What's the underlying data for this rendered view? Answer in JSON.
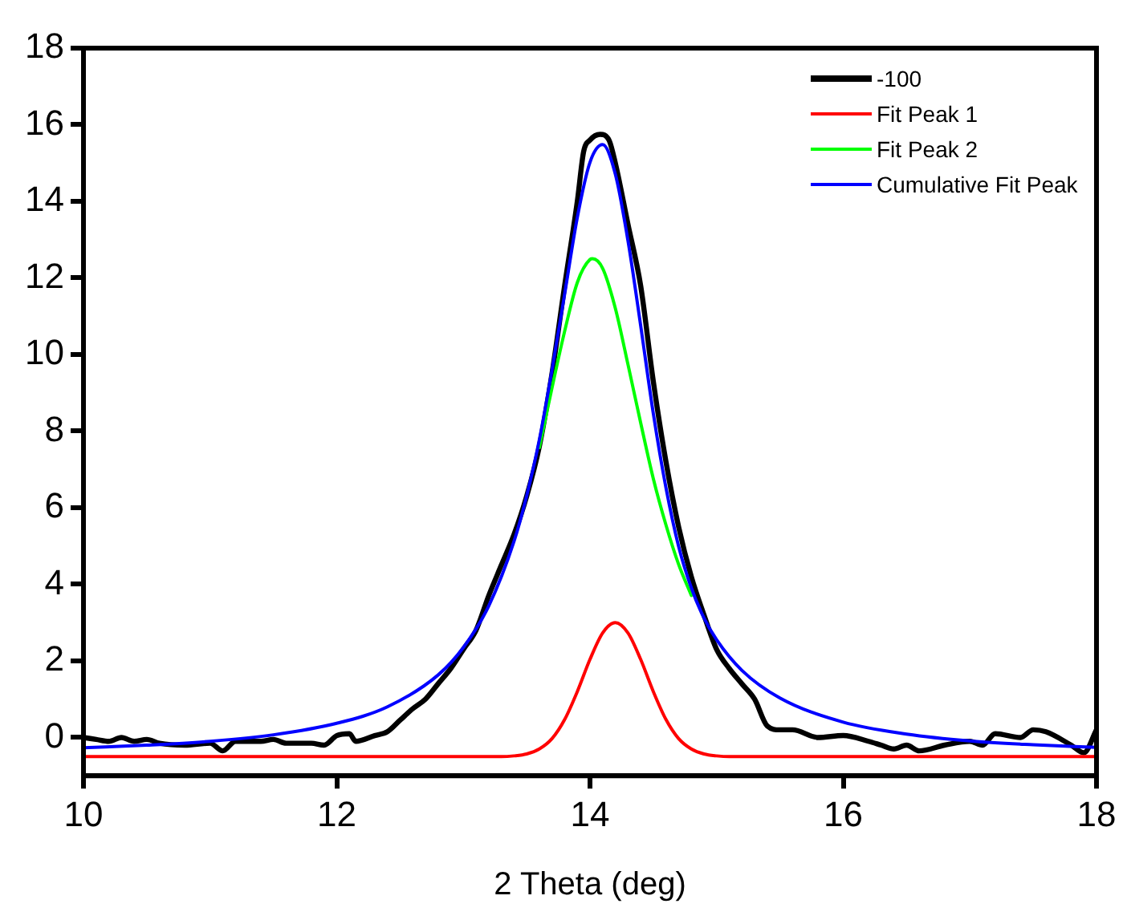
{
  "chart_data": {
    "type": "line",
    "xlabel": "2 Theta (deg)",
    "xlim": [
      10,
      18
    ],
    "xticks": [
      10,
      12,
      14,
      16,
      18
    ],
    "ylim": [
      -1,
      18
    ],
    "yticks": [
      0,
      2,
      4,
      6,
      8,
      10,
      12,
      14,
      16,
      18
    ],
    "grid": false,
    "legend": "top right",
    "marker": "none",
    "line_style": "solid",
    "series": [
      {
        "name": "-100",
        "color": "#000000",
        "x": [
          10,
          10.1,
          10.2,
          10.3,
          10.4,
          10.5,
          10.6,
          10.8,
          11.0,
          11.1,
          11.2,
          11.4,
          11.5,
          11.6,
          11.8,
          11.9,
          12.0,
          12.1,
          12.15,
          12.3,
          12.4,
          12.5,
          12.6,
          12.7,
          12.8,
          12.9,
          13.0,
          13.1,
          13.2,
          13.3,
          13.4,
          13.5,
          13.6,
          13.7,
          13.8,
          13.9,
          13.95,
          14.0,
          14.08,
          14.15,
          14.2,
          14.3,
          14.4,
          14.5,
          14.6,
          14.7,
          14.8,
          14.9,
          15.0,
          15.1,
          15.2,
          15.3,
          15.4,
          15.5,
          15.6,
          15.8,
          16.0,
          16.2,
          16.3,
          16.4,
          16.5,
          16.6,
          16.8,
          17.0,
          17.1,
          17.2,
          17.4,
          17.5,
          17.6,
          17.8,
          17.9,
          18.0
        ],
        "values": [
          0.0,
          -0.05,
          -0.1,
          0.0,
          -0.1,
          -0.05,
          -0.15,
          -0.2,
          -0.15,
          -0.35,
          -0.1,
          -0.1,
          -0.05,
          -0.15,
          -0.15,
          -0.2,
          0.05,
          0.1,
          -0.1,
          0.05,
          0.15,
          0.45,
          0.75,
          1.0,
          1.4,
          1.8,
          2.3,
          2.8,
          3.7,
          4.5,
          5.3,
          6.3,
          7.6,
          9.5,
          11.8,
          14.0,
          15.3,
          15.6,
          15.75,
          15.6,
          15.0,
          13.4,
          11.8,
          9.3,
          7.2,
          5.5,
          4.2,
          3.2,
          2.3,
          1.8,
          1.4,
          1.0,
          0.3,
          0.2,
          0.2,
          0.0,
          0.05,
          -0.1,
          -0.2,
          -0.3,
          -0.2,
          -0.35,
          -0.2,
          -0.1,
          -0.2,
          0.1,
          0.0,
          0.2,
          0.15,
          -0.2,
          -0.4,
          0.2
        ]
      },
      {
        "name": "Fit Peak 1",
        "color": "#ff0000",
        "x": [
          10,
          13.3,
          13.4,
          13.5,
          13.6,
          13.7,
          13.8,
          13.9,
          14.0,
          14.1,
          14.2,
          14.3,
          14.4,
          14.5,
          14.6,
          14.7,
          14.8,
          14.9,
          15.0,
          15.1,
          18
        ],
        "values": [
          -0.5,
          -0.5,
          -0.48,
          -0.43,
          -0.3,
          -0.03,
          0.47,
          1.2,
          2.04,
          2.73,
          3.0,
          2.73,
          2.04,
          1.2,
          0.47,
          -0.03,
          -0.3,
          -0.43,
          -0.48,
          -0.5,
          -0.5
        ]
      },
      {
        "name": "Fit Peak 2",
        "color": "#00ff00",
        "x": [
          13.6,
          13.7,
          13.8,
          13.9,
          14.0,
          14.02,
          14.1,
          14.2,
          14.3,
          14.4,
          14.5,
          14.6,
          14.7,
          14.8
        ],
        "values": [
          7.57,
          9.13,
          10.61,
          11.88,
          12.48,
          12.5,
          12.25,
          11.21,
          9.74,
          8.22,
          6.76,
          5.55,
          4.52,
          3.71
        ]
      },
      {
        "name": "Cumulative Fit Peak",
        "color": "#0000ff",
        "x": [
          10,
          10.5,
          11,
          11.5,
          12,
          12.4,
          12.8,
          13,
          13.2,
          13.4,
          13.5,
          13.6,
          13.7,
          13.8,
          13.9,
          14.0,
          14.1,
          14.2,
          14.3,
          14.4,
          14.5,
          14.6,
          14.7,
          14.8,
          14.9,
          15.0,
          15.2,
          15.5,
          16,
          16.5,
          17,
          17.5,
          18
        ],
        "values": [
          -0.27,
          -0.2,
          -0.1,
          0.07,
          0.37,
          0.8,
          1.63,
          2.35,
          3.43,
          5.12,
          6.31,
          7.77,
          9.6,
          11.58,
          13.58,
          15.02,
          15.48,
          14.71,
          12.97,
          10.76,
          8.46,
          6.52,
          4.99,
          3.91,
          3.12,
          2.55,
          1.75,
          1.03,
          0.4,
          0.09,
          -0.09,
          -0.19,
          -0.26
        ]
      }
    ]
  }
}
